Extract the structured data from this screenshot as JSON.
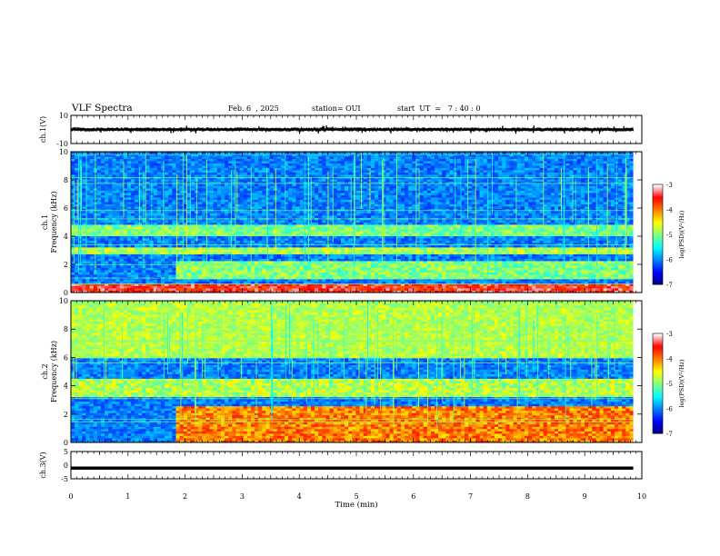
{
  "header": {
    "title": "VLF Spectra",
    "date": "Feb. 6  , 2025",
    "station": "station= OUI",
    "start_ut": "start  UT  =   7 : 40 : 0"
  },
  "chart_data": [
    {
      "type": "line",
      "panel": "ch1-waveform",
      "ylabel": "ch.1(V)",
      "ylim": [
        -10,
        10
      ],
      "y_ticks": [
        "10",
        "-10"
      ],
      "x_range_min": [
        0,
        9.85
      ],
      "signal_level_v": [
        -1.2,
        1.2
      ],
      "color": "#000000"
    },
    {
      "type": "heatmap",
      "panel": "ch1-spectrogram",
      "ylabel": "ch.1\nFrequency (kHz)",
      "ylim": [
        0,
        10
      ],
      "y_ticks": [
        "0",
        "2",
        "4",
        "6",
        "8",
        "10"
      ],
      "x_range_min": [
        0,
        9.85
      ],
      "colorbar": {
        "label": "log(PSD)(V²/Hz)",
        "range": [
          -7,
          -3
        ],
        "ticks": [
          "-3",
          "-4",
          "-5",
          "-6",
          "-7"
        ],
        "colors": [
          "#00007f",
          "#0000ff",
          "#0080ff",
          "#00ffff",
          "#80ff80",
          "#ffff00",
          "#ff8000",
          "#ff0000",
          "#ffffff"
        ]
      },
      "features": [
        {
          "band_khz": [
            0,
            0.6
          ],
          "level": -3.5,
          "note": "strong low-frequency band"
        },
        {
          "band_khz": [
            1.0,
            2.2
          ],
          "level": -5.0,
          "from_min": 1.85
        },
        {
          "band_khz": [
            2.8,
            3.3
          ],
          "level": -4.8
        },
        {
          "band_khz": [
            4.0,
            4.8
          ],
          "level": -5.0
        }
      ]
    },
    {
      "type": "heatmap",
      "panel": "ch2-spectrogram",
      "ylabel": "ch.2\nFrequency (kHz)",
      "ylim": [
        0,
        10
      ],
      "y_ticks": [
        "0",
        "2",
        "4",
        "6",
        "8",
        "10"
      ],
      "x_range_min": [
        0,
        9.85
      ],
      "colorbar": {
        "label": "log(PSD)(V²/Hz)",
        "range": [
          -7,
          -3
        ],
        "ticks": [
          "-3",
          "-4",
          "-5",
          "-6",
          "-7"
        ]
      },
      "features": [
        {
          "band_khz": [
            0,
            2.5
          ],
          "level": -4.0,
          "from_min": 1.85
        },
        {
          "band_khz": [
            3.2,
            4.5
          ],
          "level": -4.8
        },
        {
          "band_khz": [
            6.5,
            10
          ],
          "level": -5.2,
          "note": "broadband noise"
        }
      ]
    },
    {
      "type": "line",
      "panel": "ch3-waveform",
      "ylabel": "ch.3(V)",
      "ylim": [
        -5,
        5
      ],
      "y_ticks": [
        "5",
        "0",
        "-5"
      ],
      "x_range_min": [
        0,
        9.85
      ],
      "constant_v": -1.1,
      "color": "#000000"
    }
  ],
  "x_axis": {
    "label": "Time (min)",
    "ticks": [
      "0",
      "1",
      "2",
      "3",
      "4",
      "5",
      "6",
      "7",
      "8",
      "9",
      "10"
    ],
    "range": [
      0,
      10
    ]
  }
}
